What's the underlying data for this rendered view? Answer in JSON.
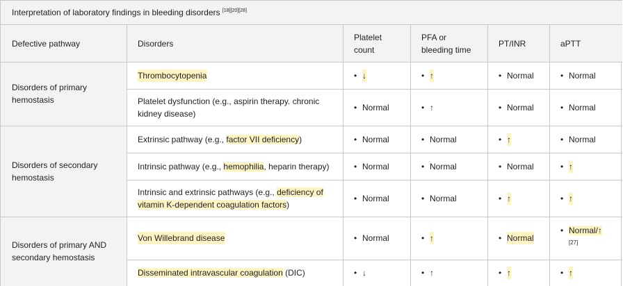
{
  "caption": {
    "title": "Interpretation of laboratory findings in bleeding disorders",
    "refs": "[18][20][28]"
  },
  "columns": {
    "pathway": "Defective pathway",
    "disorders": "Disorders",
    "platelet_line1": "Platelet",
    "platelet_line2": "count",
    "pfa_line1": "PFA or",
    "pfa_line2": "bleeding time",
    "ptinr": "PT/INR",
    "aptt": "aPTT"
  },
  "groups": {
    "primary_line1": "Disorders of primary",
    "primary_line2": "hemostasis",
    "secondary_line1": "Disorders of secondary",
    "secondary_line2": "hemostasis",
    "both_line1": "Disorders of primary AND",
    "both_line2": "secondary hemostasis"
  },
  "bullet": "•",
  "rows": {
    "thrombo": {
      "name": "Thrombocytopenia",
      "platelet": "↓",
      "pfa": "↑",
      "pt": "Normal",
      "aptt": "Normal"
    },
    "platelet_dys": {
      "line1": "Platelet dysfunction (e.g., aspirin therapy. chronic",
      "line2": "kidney disease)",
      "platelet": "Normal",
      "pfa": "↑",
      "pt": "Normal",
      "aptt": "Normal"
    },
    "extrinsic": {
      "prefix": "Extrinsic pathway (e.g., ",
      "link": "factor VII deficiency",
      "suffix": ")",
      "platelet": "Normal",
      "pfa": "Normal",
      "pt": "↑",
      "aptt": "Normal"
    },
    "intrinsic": {
      "prefix": "Intrinsic pathway (e.g., ",
      "link": "hemophilia",
      "suffix": ", heparin therapy)",
      "platelet": "Normal",
      "pfa": "Normal",
      "pt": "Normal",
      "aptt": "↑"
    },
    "both_pathways": {
      "prefix": "Intrinsic and extrinsic pathways (e.g., ",
      "link1": "deficiency of",
      "link2": "vitamin K-dependent coagulation factors",
      "suffix": ")",
      "platelet": "Normal",
      "pfa": "Normal",
      "pt": "↑",
      "aptt": "↑"
    },
    "vwd": {
      "name": "Von Willebrand disease",
      "platelet": "Normal",
      "pfa": "↑",
      "pt": "Normal",
      "aptt": "Normal/↑",
      "aptt_ref": "[27]"
    },
    "dic": {
      "name": "Disseminated intravascular coagulation",
      "suffix": " (DIC)",
      "platelet": "↓",
      "pfa": "↑",
      "pt": "↑",
      "aptt": "↑"
    }
  },
  "colors": {
    "highlight": "#fdf4c4",
    "header_bg": "#f3f3f3",
    "border": "#c9c9c9"
  }
}
